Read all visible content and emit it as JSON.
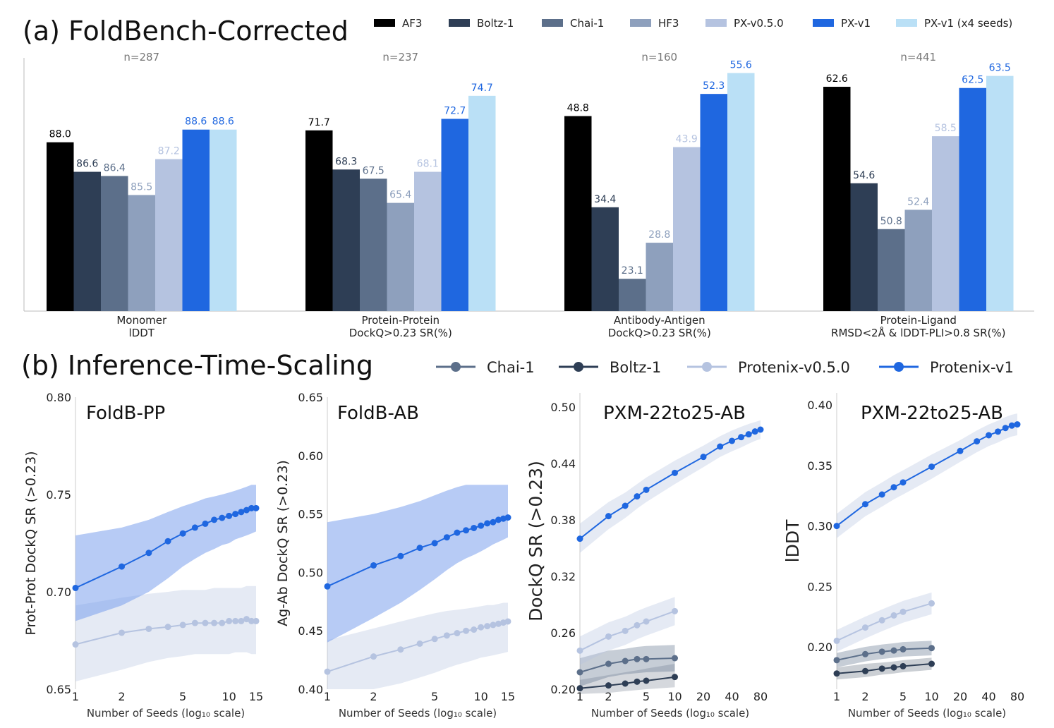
{
  "panel_a": {
    "title": "(a) FoldBench-Corrected"
  },
  "panel_b": {
    "title": "(b) Inference-Time-Scaling"
  },
  "chart_data": [
    {
      "type": "bar",
      "title": "(a) FoldBench-Corrected",
      "series": [
        {
          "name": "AF3",
          "color": "#000000",
          "values": [
            88.0,
            71.7,
            48.8,
            62.6
          ]
        },
        {
          "name": "Boltz-1",
          "color": "#2e3e55",
          "values": [
            86.6,
            68.3,
            34.4,
            54.6
          ]
        },
        {
          "name": "Chai-1",
          "color": "#5c6f8a",
          "values": [
            86.4,
            67.5,
            23.1,
            50.8
          ]
        },
        {
          "name": "HF3",
          "color": "#8ea0bd",
          "values": [
            85.5,
            65.4,
            28.8,
            52.4
          ]
        },
        {
          "name": "PX-v0.5.0",
          "color": "#b5c3e0",
          "values": [
            87.2,
            68.1,
            43.9,
            58.5
          ]
        },
        {
          "name": "PX-v1",
          "color": "#1f67e0",
          "values": [
            88.6,
            72.7,
            52.3,
            62.5
          ]
        },
        {
          "name": "PX-v1 (x4 seeds)",
          "color": "#bae0f6",
          "values": [
            88.6,
            74.7,
            55.6,
            63.5
          ]
        }
      ],
      "value_label_colors": [
        "#000000",
        "#2e3e55",
        "#5c6f8a",
        "#8ea0bd",
        "#b5c3e0",
        "#1f67e0",
        "#1f67e0"
      ],
      "groups": [
        {
          "category_line1": "Monomer",
          "category_line2": "lDDT",
          "n_label": "n=287",
          "ymin": 80,
          "ymax": 92
        },
        {
          "category_line1": "Protein-Protein",
          "category_line2": "DockQ>0.23 SR(%)",
          "n_label": "n=237",
          "ymin": 56,
          "ymax": 78
        },
        {
          "category_line1": "Antibody-Antigen",
          "category_line2": "DockQ>0.23 SR(%)",
          "n_label": "n=160",
          "ymin": 18,
          "ymax": 58
        },
        {
          "category_line1": "Protein-Ligand",
          "category_line2": "RMSD<2Å & lDDT-PLI>0.8 SR(%)",
          "n_label": "n=441",
          "ymin": 44,
          "ymax": 65
        }
      ]
    },
    {
      "type": "line",
      "title": "(b) Inference-Time-Scaling",
      "legend": [
        {
          "name": "Chai-1",
          "color": "#5c6f8a"
        },
        {
          "name": "Boltz-1",
          "color": "#2e3e55"
        },
        {
          "name": "Protenix-v0.5.0",
          "color": "#b5c3e0"
        },
        {
          "name": "Protenix-v1",
          "color": "#1f67e0"
        }
      ],
      "xlabel": "Number of Seeds (log₁₀ scale)",
      "subplots": [
        {
          "title": "FoldB-PP",
          "ylabel": "Prot-Prot DockQ SR (>0.23)",
          "xlim": [
            1,
            15
          ],
          "xticks": [
            1,
            2,
            5,
            10,
            15
          ],
          "ylim": [
            0.65,
            0.8
          ],
          "yticks": [
            "0.65",
            "0.70",
            "0.75",
            "0.80"
          ],
          "series": [
            {
              "name": "Protenix-v1",
              "color": "#1f67e0",
              "band_color": "#6f98ec",
              "band_opacity": 0.5,
              "x": [
                1,
                2,
                3,
                4,
                5,
                6,
                7,
                8,
                9,
                10,
                11,
                12,
                13,
                14,
                15
              ],
              "y": [
                0.702,
                0.713,
                0.72,
                0.726,
                0.73,
                0.733,
                0.735,
                0.737,
                0.738,
                0.739,
                0.74,
                0.741,
                0.742,
                0.743,
                0.743
              ],
              "lower": [
                0.685,
                0.693,
                0.7,
                0.707,
                0.713,
                0.717,
                0.72,
                0.722,
                0.724,
                0.725,
                0.727,
                0.728,
                0.729,
                0.73,
                0.731
              ],
              "upper": [
                0.729,
                0.733,
                0.737,
                0.741,
                0.744,
                0.746,
                0.748,
                0.749,
                0.75,
                0.751,
                0.752,
                0.753,
                0.754,
                0.755,
                0.755
              ]
            },
            {
              "name": "Protenix-v0.5.0",
              "color": "#b5c3e0",
              "band_color": "#b5c3e0",
              "band_opacity": 0.35,
              "x": [
                1,
                2,
                3,
                4,
                5,
                6,
                7,
                8,
                9,
                10,
                11,
                12,
                13,
                14,
                15
              ],
              "y": [
                0.673,
                0.679,
                0.681,
                0.682,
                0.683,
                0.684,
                0.684,
                0.684,
                0.684,
                0.685,
                0.685,
                0.685,
                0.686,
                0.685,
                0.685
              ],
              "lower": [
                0.654,
                0.66,
                0.664,
                0.666,
                0.667,
                0.668,
                0.668,
                0.668,
                0.668,
                0.668,
                0.669,
                0.669,
                0.669,
                0.668,
                0.668
              ],
              "upper": [
                0.693,
                0.697,
                0.699,
                0.7,
                0.701,
                0.701,
                0.701,
                0.702,
                0.702,
                0.702,
                0.702,
                0.702,
                0.703,
                0.703,
                0.703
              ]
            }
          ]
        },
        {
          "title": "FoldB-AB",
          "ylabel": "Ag-Ab DockQ SR (>0.23)",
          "xlim": [
            1,
            15
          ],
          "xticks": [
            1,
            2,
            5,
            10,
            15
          ],
          "ylim": [
            0.4,
            0.65
          ],
          "yticks": [
            "0.40",
            "0.45",
            "0.50",
            "0.55",
            "0.60",
            "0.65"
          ],
          "series": [
            {
              "name": "Protenix-v1",
              "color": "#1f67e0",
              "band_color": "#6f98ec",
              "band_opacity": 0.5,
              "x": [
                1,
                2,
                3,
                4,
                5,
                6,
                7,
                8,
                9,
                10,
                11,
                12,
                13,
                14,
                15
              ],
              "y": [
                0.488,
                0.506,
                0.514,
                0.521,
                0.525,
                0.53,
                0.534,
                0.536,
                0.538,
                0.54,
                0.542,
                0.543,
                0.545,
                0.546,
                0.547
              ],
              "lower": [
                0.44,
                0.461,
                0.474,
                0.485,
                0.494,
                0.502,
                0.508,
                0.512,
                0.515,
                0.518,
                0.521,
                0.524,
                0.526,
                0.528,
                0.53
              ],
              "upper": [
                0.543,
                0.55,
                0.556,
                0.561,
                0.566,
                0.57,
                0.573,
                0.575,
                0.575,
                0.575,
                0.575,
                0.575,
                0.575,
                0.575,
                0.575
              ]
            },
            {
              "name": "Protenix-v0.5.0",
              "color": "#b5c3e0",
              "band_color": "#b5c3e0",
              "band_opacity": 0.35,
              "x": [
                1,
                2,
                3,
                4,
                5,
                6,
                7,
                8,
                9,
                10,
                11,
                12,
                13,
                14,
                15
              ],
              "y": [
                0.415,
                0.428,
                0.434,
                0.439,
                0.443,
                0.446,
                0.448,
                0.45,
                0.451,
                0.453,
                0.454,
                0.455,
                0.456,
                0.457,
                0.458
              ],
              "lower": [
                0.4,
                0.4,
                0.405,
                0.41,
                0.414,
                0.418,
                0.421,
                0.423,
                0.425,
                0.427,
                0.428,
                0.429,
                0.43,
                0.431,
                0.432
              ],
              "upper": [
                0.442,
                0.452,
                0.458,
                0.462,
                0.465,
                0.467,
                0.468,
                0.469,
                0.47,
                0.471,
                0.472,
                0.472,
                0.473,
                0.474,
                0.474
              ]
            }
          ]
        },
        {
          "title": "PXM-22to25-AB",
          "ylabel": "DockQ SR (>0.23)",
          "xlim": [
            1,
            80
          ],
          "xticks": [
            1,
            2,
            5,
            10,
            20,
            40,
            80
          ],
          "ylim": [
            0.2,
            0.515
          ],
          "yticks": [
            "0.20",
            "0.26",
            "0.32",
            "0.38",
            "0.44",
            "0.50"
          ],
          "series": [
            {
              "name": "Protenix-v1",
              "color": "#1f67e0",
              "band_color": "#b5c3e0",
              "band_opacity": 0.35,
              "x": [
                1,
                2,
                3,
                4,
                5,
                10,
                20,
                30,
                40,
                50,
                60,
                70,
                80
              ],
              "y": [
                0.36,
                0.384,
                0.395,
                0.405,
                0.412,
                0.43,
                0.447,
                0.458,
                0.464,
                0.468,
                0.471,
                0.474,
                0.476
              ],
              "lower": [
                0.345,
                0.37,
                0.382,
                0.392,
                0.399,
                0.418,
                0.436,
                0.447,
                0.453,
                0.457,
                0.461,
                0.464,
                0.466
              ],
              "upper": [
                0.376,
                0.399,
                0.409,
                0.418,
                0.425,
                0.443,
                0.459,
                0.469,
                0.475,
                0.479,
                0.482,
                0.484,
                0.486
              ]
            },
            {
              "name": "Protenix-v0.5.0",
              "color": "#b5c3e0",
              "band_color": "#b5c3e0",
              "band_opacity": 0.35,
              "x": [
                1,
                2,
                3,
                4,
                5,
                10
              ],
              "y": [
                0.241,
                0.256,
                0.262,
                0.268,
                0.272,
                0.283
              ],
              "lower": [
                0.226,
                0.241,
                0.247,
                0.253,
                0.257,
                0.268
              ],
              "upper": [
                0.256,
                0.271,
                0.277,
                0.283,
                0.287,
                0.298
              ]
            },
            {
              "name": "Chai-1",
              "color": "#5c6f8a",
              "band_color": "#5c6f8a",
              "band_opacity": 0.35,
              "x": [
                1,
                2,
                3,
                4,
                5,
                10
              ],
              "y": [
                0.218,
                0.227,
                0.23,
                0.232,
                0.232,
                0.233
              ],
              "lower": [
                0.203,
                0.213,
                0.216,
                0.217,
                0.218,
                0.219
              ],
              "upper": [
                0.233,
                0.241,
                0.243,
                0.245,
                0.246,
                0.247
              ]
            },
            {
              "name": "Boltz-1",
              "color": "#2e3e55",
              "band_color": "#2e3e55",
              "band_opacity": 0.2,
              "x": [
                1,
                2,
                3,
                4,
                5,
                10
              ],
              "y": [
                0.201,
                0.204,
                0.206,
                0.208,
                0.209,
                0.213
              ],
              "lower": [
                0.195,
                0.196,
                0.198,
                0.199,
                0.2,
                0.202
              ],
              "upper": [
                0.21,
                0.215,
                0.218,
                0.22,
                0.222,
                0.227
              ]
            }
          ]
        },
        {
          "title": "PXM-22to25-AB",
          "ylabel": "lDDT",
          "xlim": [
            1,
            80
          ],
          "xticks": [
            1,
            2,
            5,
            10,
            20,
            40,
            80
          ],
          "ylim": [
            0.165,
            0.41
          ],
          "yticks": [
            "0.20",
            "0.25",
            "0.30",
            "0.35",
            "0.40"
          ],
          "series": [
            {
              "name": "Protenix-v1",
              "color": "#1f67e0",
              "band_color": "#b5c3e0",
              "band_opacity": 0.35,
              "x": [
                1,
                2,
                3,
                4,
                5,
                10,
                20,
                30,
                40,
                50,
                60,
                70,
                80
              ],
              "y": [
                0.3,
                0.318,
                0.326,
                0.332,
                0.336,
                0.349,
                0.362,
                0.37,
                0.375,
                0.378,
                0.381,
                0.383,
                0.384
              ],
              "lower": [
                0.29,
                0.308,
                0.316,
                0.322,
                0.326,
                0.339,
                0.353,
                0.361,
                0.366,
                0.369,
                0.372,
                0.374,
                0.375
              ],
              "upper": [
                0.31,
                0.328,
                0.336,
                0.342,
                0.346,
                0.359,
                0.371,
                0.379,
                0.384,
                0.387,
                0.39,
                0.392,
                0.393
              ]
            },
            {
              "name": "Protenix-v0.5.0",
              "color": "#b5c3e0",
              "band_color": "#b5c3e0",
              "band_opacity": 0.35,
              "x": [
                1,
                2,
                3,
                4,
                5,
                10
              ],
              "y": [
                0.205,
                0.216,
                0.222,
                0.226,
                0.229,
                0.236
              ],
              "lower": [
                0.196,
                0.207,
                0.213,
                0.217,
                0.22,
                0.227
              ],
              "upper": [
                0.214,
                0.225,
                0.231,
                0.235,
                0.238,
                0.245
              ]
            },
            {
              "name": "Chai-1",
              "color": "#5c6f8a",
              "band_color": "#5c6f8a",
              "band_opacity": 0.35,
              "x": [
                1,
                2,
                3,
                4,
                5,
                10
              ],
              "y": [
                0.189,
                0.194,
                0.196,
                0.197,
                0.198,
                0.199
              ],
              "lower": [
                0.183,
                0.188,
                0.19,
                0.191,
                0.192,
                0.193
              ],
              "upper": [
                0.195,
                0.2,
                0.202,
                0.203,
                0.204,
                0.205
              ]
            },
            {
              "name": "Boltz-1",
              "color": "#2e3e55",
              "band_color": "#2e3e55",
              "band_opacity": 0.25,
              "x": [
                1,
                2,
                3,
                4,
                5,
                10
              ],
              "y": [
                0.178,
                0.18,
                0.182,
                0.183,
                0.184,
                0.186
              ],
              "lower": [
                0.173,
                0.175,
                0.177,
                0.178,
                0.179,
                0.181
              ],
              "upper": [
                0.183,
                0.186,
                0.187,
                0.188,
                0.189,
                0.191
              ]
            }
          ]
        }
      ]
    }
  ]
}
